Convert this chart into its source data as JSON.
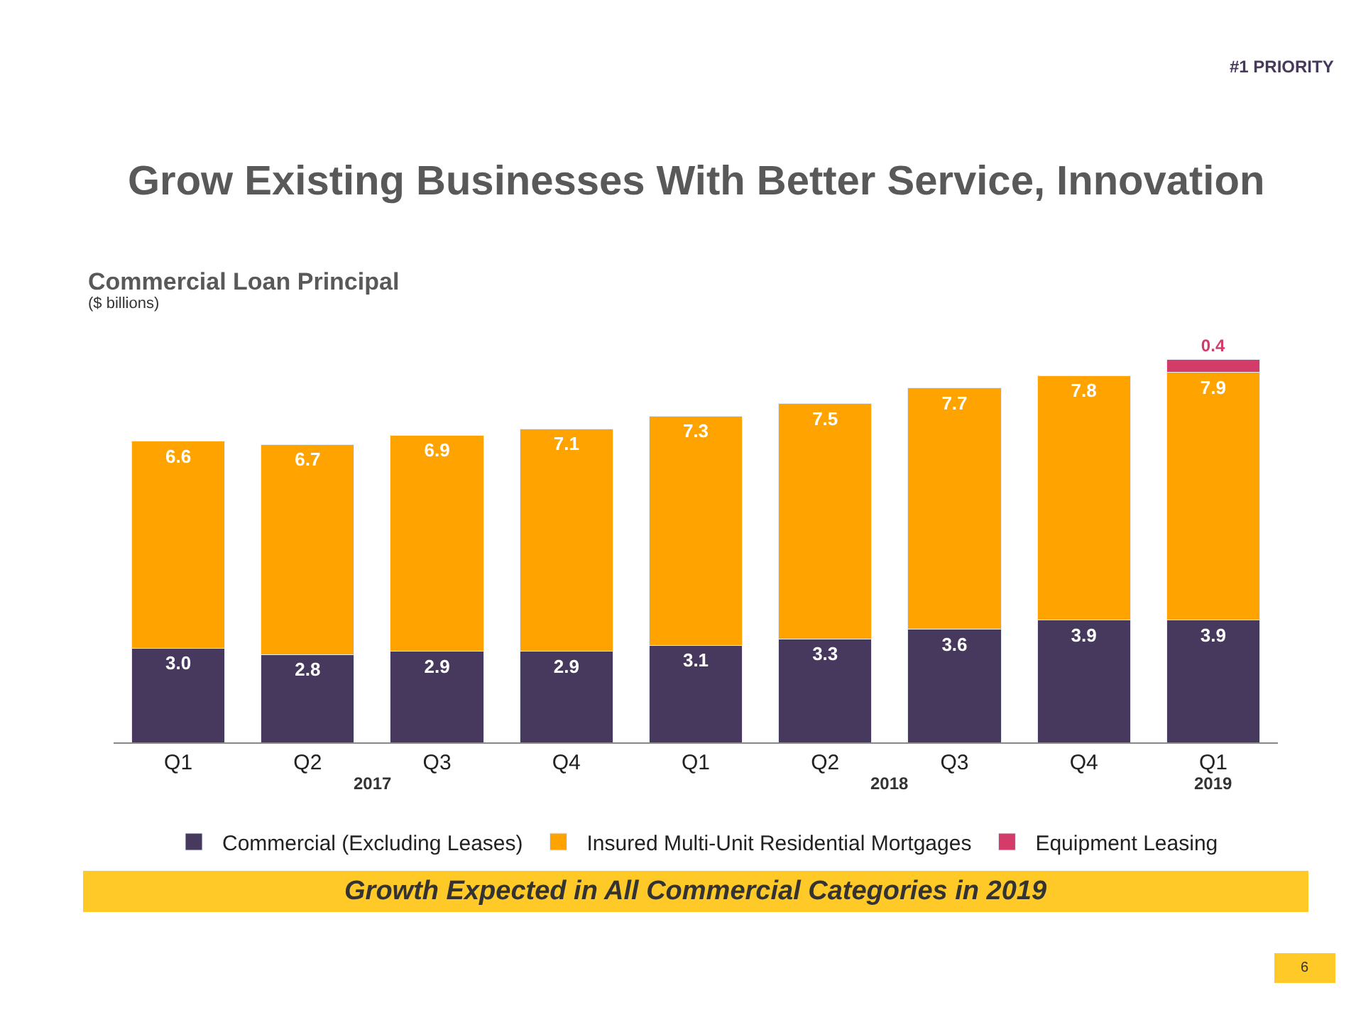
{
  "chart_data": {
    "type": "bar",
    "title": "Grow Existing Businesses With Better Service, Innovation",
    "subtitle": "Commercial Loan Principal",
    "ylabel": "($ billions)",
    "categories": [
      "Q1",
      "Q2",
      "Q3",
      "Q4",
      "Q1",
      "Q2",
      "Q3",
      "Q4",
      "Q1"
    ],
    "stacked": true,
    "legend": "bottom",
    "series": [
      {
        "name": "Commercial (Excluding Leases)",
        "color": "#47395e",
        "values": [
          3.0,
          2.8,
          2.9,
          2.9,
          3.1,
          3.3,
          3.6,
          3.9,
          3.9
        ],
        "value_labels": [
          "3.0",
          "2.8",
          "2.9",
          "2.9",
          "3.1",
          "3.3",
          "3.6",
          "3.9",
          "3.9"
        ]
      },
      {
        "name": "Insured Multi-Unit Residential Mortgages",
        "color": "#ffa300",
        "values": [
          6.6,
          6.7,
          6.9,
          7.1,
          7.3,
          7.5,
          7.7,
          7.8,
          7.9
        ],
        "value_labels": [
          "6.6",
          "6.7",
          "6.9",
          "7.1",
          "7.3",
          "7.5",
          "7.7",
          "7.8",
          "7.9"
        ]
      },
      {
        "name": "Equipment Leasing",
        "color": "#d33b69",
        "values": [
          null,
          null,
          null,
          null,
          null,
          null,
          null,
          null,
          0.4
        ],
        "value_labels": [
          null,
          null,
          null,
          null,
          null,
          null,
          null,
          null,
          "0.4"
        ]
      }
    ],
    "annotations": [
      "#1 PRIORITY",
      "2017",
      "2018",
      "2019",
      "Growth Expected in All Commercial Categories in 2019",
      "6"
    ]
  }
}
